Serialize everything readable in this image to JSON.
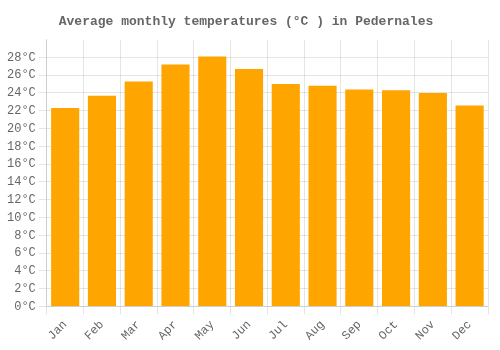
{
  "chart_data": {
    "type": "bar",
    "title": "Average monthly temperatures (°C ) in Pedernales",
    "categories": [
      "Jan",
      "Feb",
      "Mar",
      "Apr",
      "May",
      "Jun",
      "Jul",
      "Aug",
      "Sep",
      "Oct",
      "Nov",
      "Dec"
    ],
    "values": [
      22.3,
      23.7,
      25.3,
      27.2,
      28.1,
      26.7,
      25.0,
      24.8,
      24.4,
      24.3,
      24.0,
      22.6
    ],
    "color": "#FFA500",
    "ylim": [
      0,
      30
    ],
    "yticks": [
      {
        "value": 0,
        "label": "0°C"
      },
      {
        "value": 2,
        "label": "2°C"
      },
      {
        "value": 4,
        "label": "4°C"
      },
      {
        "value": 6,
        "label": "6°C"
      },
      {
        "value": 8,
        "label": "8°C"
      },
      {
        "value": 10,
        "label": "10°C"
      },
      {
        "value": 12,
        "label": "12°C"
      },
      {
        "value": 14,
        "label": "14°C"
      },
      {
        "value": 16,
        "label": "16°C"
      },
      {
        "value": 18,
        "label": "18°C"
      },
      {
        "value": 20,
        "label": "20°C"
      },
      {
        "value": 22,
        "label": "22°C"
      },
      {
        "value": 24,
        "label": "24°C"
      },
      {
        "value": 26,
        "label": "26°C"
      },
      {
        "value": 28,
        "label": "28°C"
      }
    ],
    "grid": true
  }
}
